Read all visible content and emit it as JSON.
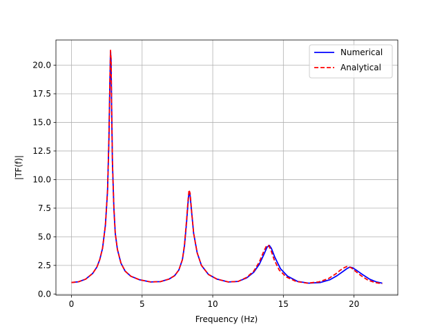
{
  "chart_data": {
    "type": "line",
    "title": "",
    "xlabel": "Frequency (Hz)",
    "ylabel": "|TF(f)|",
    "xlim": [
      -1.1,
      23.1
    ],
    "ylim": [
      -0.1,
      22.2
    ],
    "x_ticks": [
      0,
      5,
      10,
      15,
      20
    ],
    "x_tick_labels": [
      "0",
      "5",
      "10",
      "15",
      "20"
    ],
    "y_ticks": [
      0.0,
      2.5,
      5.0,
      7.5,
      10.0,
      12.5,
      15.0,
      17.5,
      20.0
    ],
    "y_tick_labels": [
      "0.0",
      "2.5",
      "5.0",
      "7.5",
      "10.0",
      "12.5",
      "15.0",
      "17.5",
      "20.0"
    ],
    "grid": true,
    "legend_position": "top-right",
    "series": [
      {
        "name": "Numerical",
        "color": "#0000ff",
        "style": "solid",
        "x": [
          0.0,
          0.5,
          1.0,
          1.5,
          1.8,
          2.0,
          2.2,
          2.4,
          2.55,
          2.65,
          2.72,
          2.76,
          2.8,
          2.84,
          2.9,
          3.0,
          3.1,
          3.25,
          3.5,
          3.8,
          4.2,
          4.8,
          5.6,
          6.3,
          6.9,
          7.3,
          7.6,
          7.85,
          8.0,
          8.15,
          8.25,
          8.32,
          8.4,
          8.5,
          8.65,
          8.9,
          9.2,
          9.7,
          10.3,
          11.1,
          11.8,
          12.4,
          12.9,
          13.3,
          13.6,
          13.85,
          14.0,
          14.15,
          14.4,
          14.8,
          15.3,
          16.0,
          16.8,
          17.6,
          18.3,
          18.8,
          19.2,
          19.5,
          19.7,
          19.9,
          20.2,
          20.6,
          21.1,
          21.6,
          22.0
        ],
        "y": [
          1.0,
          1.07,
          1.3,
          1.8,
          2.35,
          3.0,
          4.0,
          6.0,
          9.0,
          13.5,
          18.5,
          21.2,
          20.5,
          16.5,
          11.5,
          7.5,
          5.3,
          3.9,
          2.7,
          2.0,
          1.55,
          1.25,
          1.05,
          1.08,
          1.3,
          1.6,
          2.1,
          3.0,
          4.2,
          6.3,
          8.0,
          8.9,
          8.6,
          7.2,
          5.3,
          3.6,
          2.5,
          1.7,
          1.3,
          1.05,
          1.1,
          1.4,
          1.9,
          2.6,
          3.4,
          4.1,
          4.25,
          4.0,
          3.2,
          2.2,
          1.55,
          1.1,
          0.95,
          1.0,
          1.25,
          1.6,
          1.95,
          2.22,
          2.35,
          2.3,
          2.05,
          1.7,
          1.3,
          1.05,
          0.95
        ]
      },
      {
        "name": "Analytical",
        "color": "#ff0000",
        "style": "dashed",
        "x": [
          0.0,
          0.5,
          1.0,
          1.5,
          1.8,
          2.0,
          2.2,
          2.4,
          2.55,
          2.65,
          2.72,
          2.76,
          2.8,
          2.84,
          2.9,
          3.0,
          3.1,
          3.25,
          3.5,
          3.8,
          4.2,
          4.8,
          5.6,
          6.3,
          6.9,
          7.3,
          7.6,
          7.85,
          8.0,
          8.15,
          8.25,
          8.32,
          8.4,
          8.5,
          8.65,
          8.9,
          9.2,
          9.7,
          10.3,
          11.1,
          11.8,
          12.4,
          12.9,
          13.3,
          13.6,
          13.8,
          13.95,
          14.1,
          14.35,
          14.7,
          15.2,
          15.9,
          16.7,
          17.5,
          18.2,
          18.7,
          19.0,
          19.3,
          19.5,
          19.8,
          20.1,
          20.5,
          21.0,
          21.5,
          22.0
        ],
        "y": [
          1.0,
          1.07,
          1.3,
          1.8,
          2.35,
          3.0,
          4.0,
          6.0,
          9.0,
          13.5,
          18.5,
          21.3,
          20.6,
          16.6,
          11.6,
          7.5,
          5.3,
          3.9,
          2.7,
          2.0,
          1.55,
          1.25,
          1.05,
          1.08,
          1.3,
          1.6,
          2.1,
          3.0,
          4.3,
          6.5,
          8.2,
          9.1,
          8.8,
          7.3,
          5.3,
          3.6,
          2.5,
          1.7,
          1.3,
          1.05,
          1.1,
          1.45,
          2.0,
          2.8,
          3.7,
          4.2,
          4.25,
          3.9,
          3.0,
          2.1,
          1.5,
          1.1,
          0.95,
          1.05,
          1.35,
          1.75,
          2.05,
          2.3,
          2.4,
          2.3,
          2.0,
          1.6,
          1.2,
          1.0,
          0.9
        ]
      }
    ]
  }
}
